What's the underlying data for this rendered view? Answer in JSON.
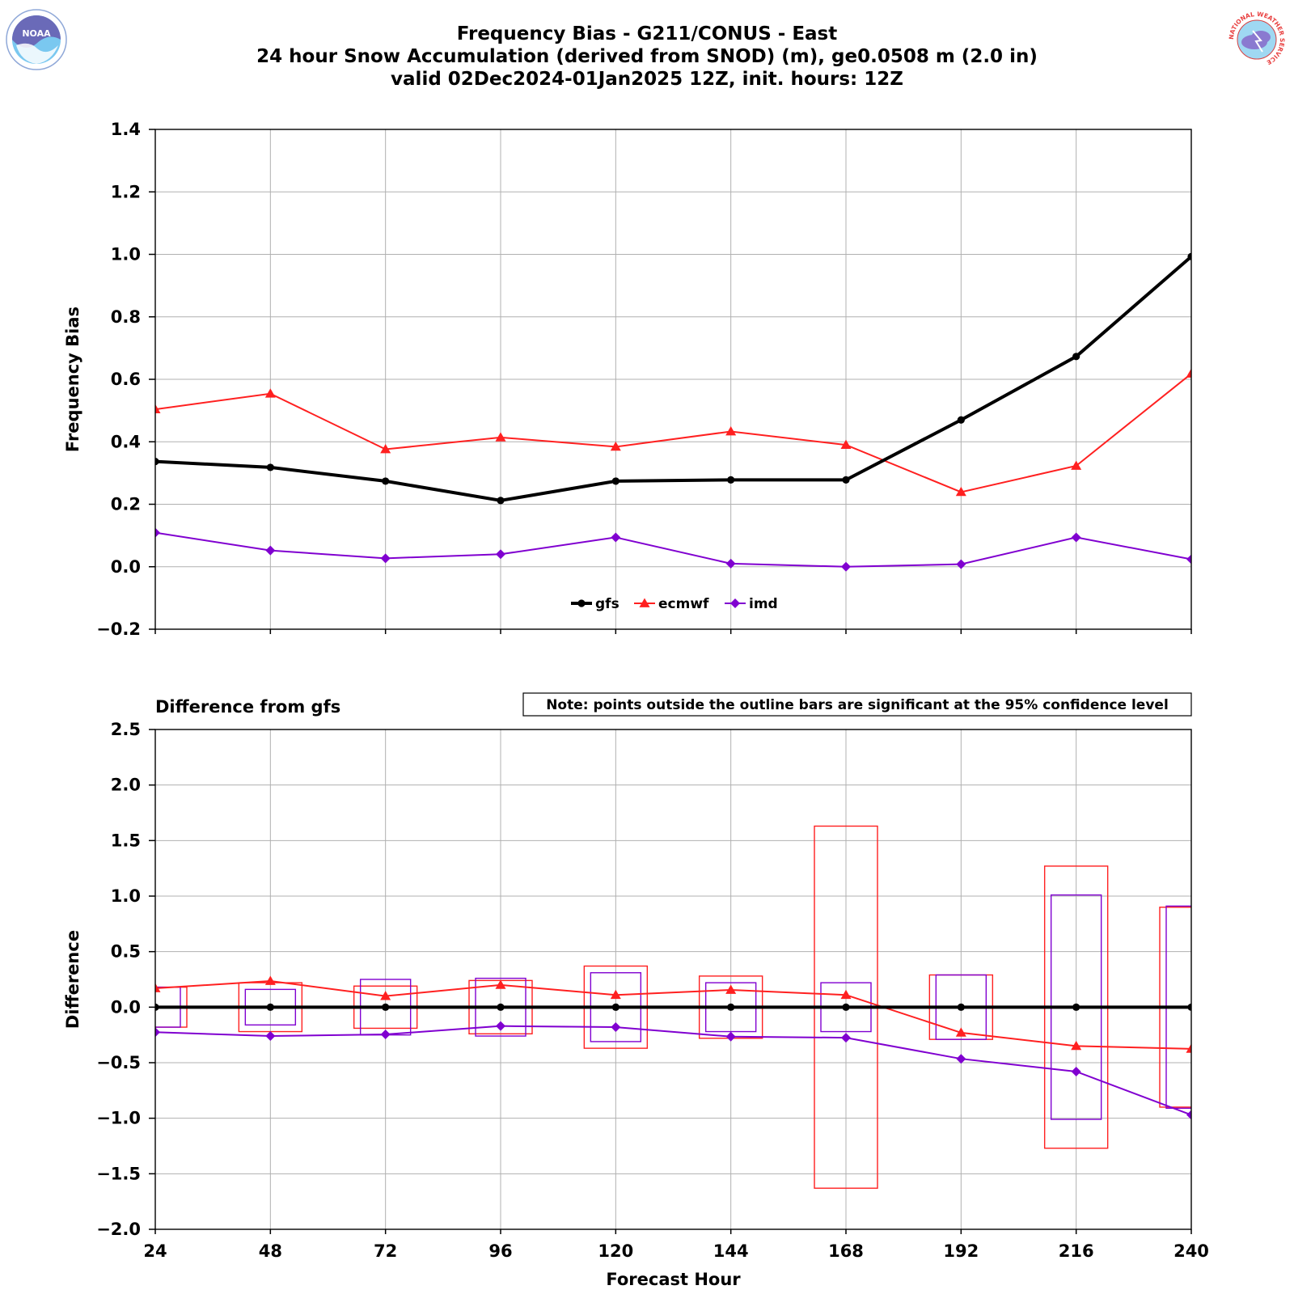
{
  "title": {
    "line1": "Frequency Bias - G211/CONUS - East",
    "line2": "24 hour Snow Accumulation (derived from SNOD) (m), ge0.0508 m (2.0 in)",
    "line3": "valid 02Dec2024-01Jan2025 12Z, init. hours: 12Z"
  },
  "logos": {
    "left": {
      "name": "noaa-logo",
      "text": "NOAA"
    },
    "right": {
      "name": "nws-logo",
      "text": "NATIONAL WEATHER SERVICE"
    }
  },
  "colors": {
    "gfs": "#000000",
    "ecmwf": "#ff2020",
    "imd": "#8000d0",
    "grid": "#b0b0b0"
  },
  "chart_data": [
    {
      "type": "line",
      "ylabel": "Frequency Bias",
      "xlabel": "",
      "ylim": [
        -0.2,
        1.4
      ],
      "yticks": [
        "−0.2",
        "0.0",
        "0.2",
        "0.4",
        "0.6",
        "0.8",
        "1.0",
        "1.2",
        "1.4"
      ],
      "ytick_values": [
        -0.2,
        0.0,
        0.2,
        0.4,
        0.6,
        0.8,
        1.0,
        1.2,
        1.4
      ],
      "x": [
        24,
        48,
        72,
        96,
        120,
        144,
        168,
        192,
        216,
        240
      ],
      "xlim": [
        24,
        240
      ],
      "grid": true,
      "legend_position": "bottom-center",
      "series": [
        {
          "name": "gfs",
          "marker": "circle",
          "values": [
            0.337,
            0.318,
            0.274,
            0.212,
            0.274,
            0.278,
            0.278,
            0.47,
            0.673,
            0.993
          ]
        },
        {
          "name": "ecmwf",
          "marker": "triangle",
          "values": [
            0.504,
            0.554,
            0.376,
            0.414,
            0.384,
            0.433,
            0.39,
            0.239,
            0.323,
            0.618
          ]
        },
        {
          "name": "imd",
          "marker": "diamond",
          "values": [
            0.109,
            0.052,
            0.027,
            0.04,
            0.094,
            0.01,
            0.0,
            0.008,
            0.094,
            0.024
          ]
        }
      ]
    },
    {
      "type": "line",
      "subtitle": "Difference from gfs",
      "note": "Note: points outside the outline bars are significant at the 95% confidence level",
      "ylabel": "Difference",
      "xlabel": "Forecast Hour",
      "ylim": [
        -2.0,
        2.5
      ],
      "yticks": [
        "−2.0",
        "−1.5",
        "−1.0",
        "−0.5",
        "0.0",
        "0.5",
        "1.0",
        "1.5",
        "2.0",
        "2.5"
      ],
      "ytick_values": [
        -2.0,
        -1.5,
        -1.0,
        -0.5,
        0.0,
        0.5,
        1.0,
        1.5,
        2.0,
        2.5
      ],
      "x": [
        24,
        48,
        72,
        96,
        120,
        144,
        168,
        192,
        216,
        240
      ],
      "xticks": [
        "24",
        "48",
        "72",
        "96",
        "120",
        "144",
        "168",
        "192",
        "216",
        "240"
      ],
      "xlim": [
        24,
        240
      ],
      "grid": true,
      "series": [
        {
          "name": "gfs",
          "marker": "circle",
          "values": [
            0,
            0,
            0,
            0,
            0,
            0,
            0,
            0,
            0,
            0
          ]
        },
        {
          "name": "ecmwf",
          "marker": "triangle",
          "values": [
            0.17,
            0.235,
            0.1,
            0.2,
            0.11,
            0.155,
            0.11,
            -0.23,
            -0.35,
            -0.375
          ],
          "ci_halfwidth": [
            0.18,
            0.22,
            0.19,
            0.24,
            0.37,
            0.28,
            1.63,
            0.29,
            1.27,
            0.9
          ]
        },
        {
          "name": "imd",
          "marker": "diamond",
          "values": [
            -0.225,
            -0.26,
            -0.245,
            -0.17,
            -0.18,
            -0.265,
            -0.275,
            -0.465,
            -0.58,
            -0.97
          ],
          "ci_halfwidth": [
            0.18,
            0.16,
            0.25,
            0.26,
            0.31,
            0.22,
            0.22,
            0.29,
            1.01,
            0.91
          ]
        }
      ]
    }
  ]
}
